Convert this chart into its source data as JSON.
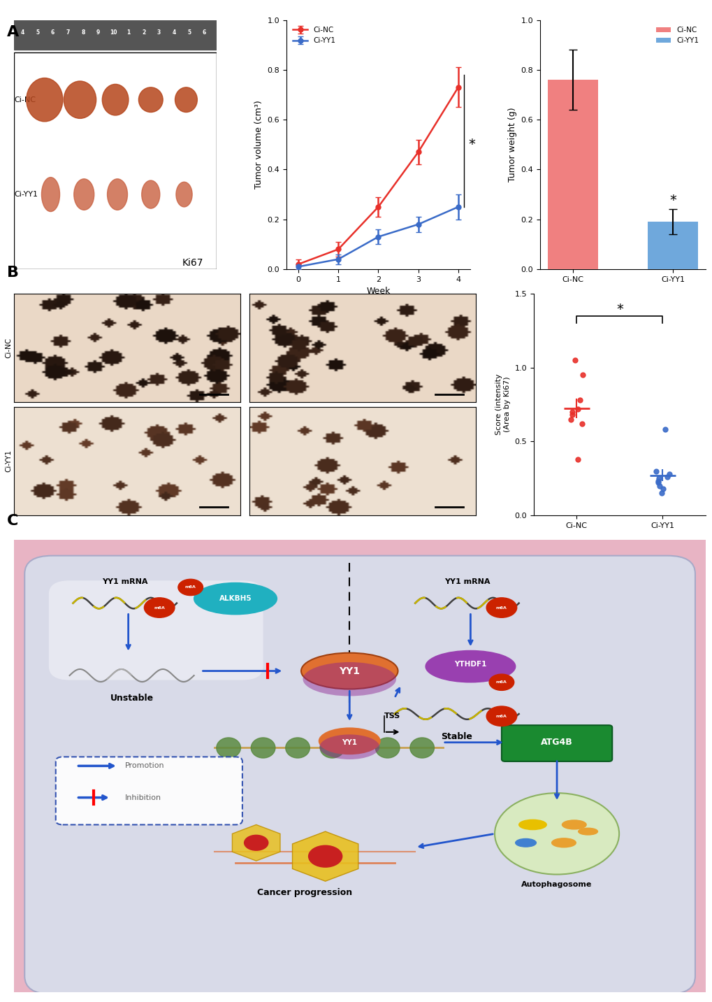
{
  "panel_A_label": "A",
  "panel_B_label": "B",
  "panel_C_label": "C",
  "tumor_volume": {
    "x": [
      0,
      1,
      2,
      3,
      4
    ],
    "CiNC": [
      0.02,
      0.08,
      0.25,
      0.47,
      0.73
    ],
    "CiNC_err": [
      0.02,
      0.03,
      0.04,
      0.05,
      0.08
    ],
    "CiYY1": [
      0.01,
      0.04,
      0.13,
      0.18,
      0.25
    ],
    "CiYY1_err": [
      0.01,
      0.02,
      0.03,
      0.03,
      0.05
    ],
    "xlabel": "Week",
    "ylabel": "Tumor volume (cm³)",
    "ylim": [
      0,
      1.0
    ],
    "CiNC_color": "#e8302a",
    "CiYY1_color": "#3a6bc8"
  },
  "tumor_weight": {
    "categories": [
      "Ci-NC",
      "Ci-YY1"
    ],
    "values": [
      0.76,
      0.19
    ],
    "errors": [
      0.12,
      0.05
    ],
    "colors": [
      "#f08080",
      "#6fa8dc"
    ],
    "ylabel": "Tumor weight (g)",
    "ylim": [
      0,
      1.0
    ]
  },
  "ki67_scatter": {
    "CiNC_points": [
      1.05,
      0.95,
      0.78,
      0.72,
      0.7,
      0.68,
      0.65,
      0.62,
      0.38
    ],
    "CiNC_mean": 0.725,
    "CiYY1_points": [
      0.58,
      0.3,
      0.28,
      0.26,
      0.25,
      0.23,
      0.22,
      0.2,
      0.18,
      0.15
    ],
    "CiYY1_mean": 0.27,
    "ylabel": "Score (intensity\n(Area by Ki67)",
    "ylim": [
      0,
      1.5
    ],
    "CiNC_color": "#e8302a",
    "CiYY1_color": "#3a6bc8"
  },
  "background_color": "#ffffff",
  "cell_bg": "#e8eaf0",
  "cell_border_outer": "#d4789a",
  "cell_border_inner": "#c0c0d0"
}
